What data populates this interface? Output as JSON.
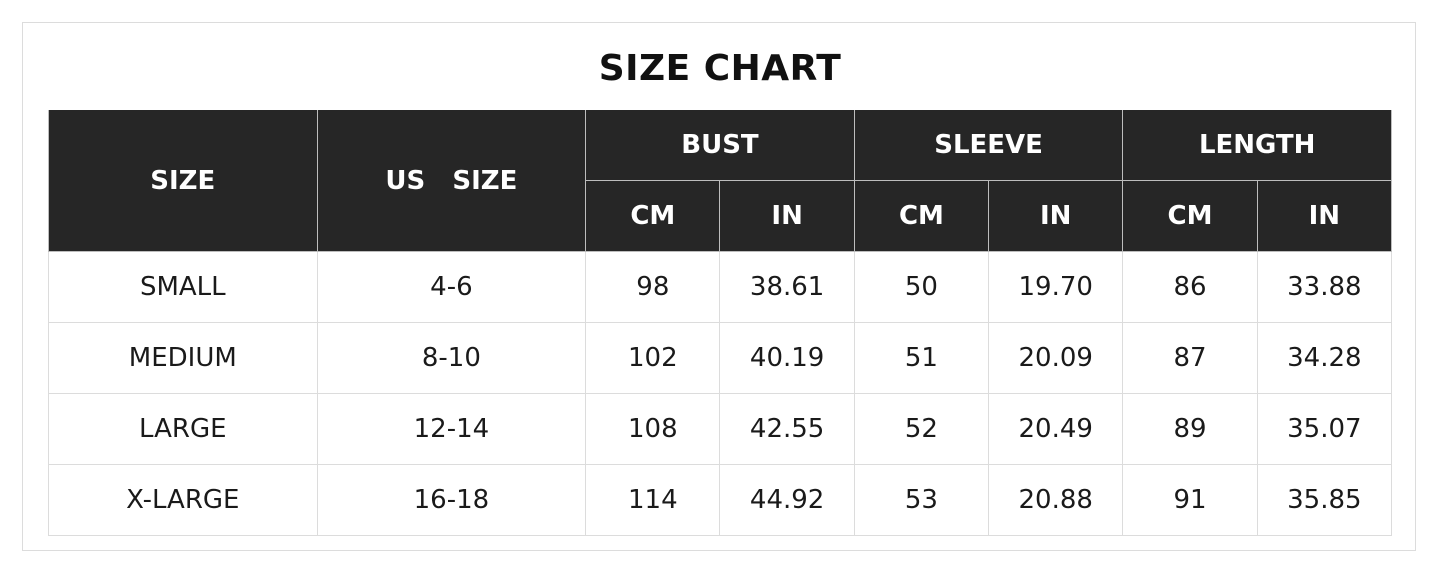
{
  "title": "SIZE CHART",
  "header": {
    "size": "SIZE",
    "us_size": "US   SIZE",
    "groups": [
      "BUST",
      "SLEEVE",
      "LENGTH"
    ],
    "units": [
      "CM",
      "IN",
      "CM",
      "IN",
      "CM",
      "IN"
    ]
  },
  "rows": [
    [
      "SMALL",
      "4-6",
      "98",
      "38.61",
      "50",
      "19.70",
      "86",
      "33.88"
    ],
    [
      "MEDIUM",
      "8-10",
      "102",
      "40.19",
      "51",
      "20.09",
      "87",
      "34.28"
    ],
    [
      "LARGE",
      "12-14",
      "108",
      "42.55",
      "52",
      "20.49",
      "89",
      "35.07"
    ],
    [
      "X-LARGE",
      "16-18",
      "114",
      "44.92",
      "53",
      "20.88",
      "91",
      "35.85"
    ]
  ],
  "colors": {
    "header_bg": "#262626",
    "header_text": "#ffffff",
    "border": "#dcdcdc"
  }
}
